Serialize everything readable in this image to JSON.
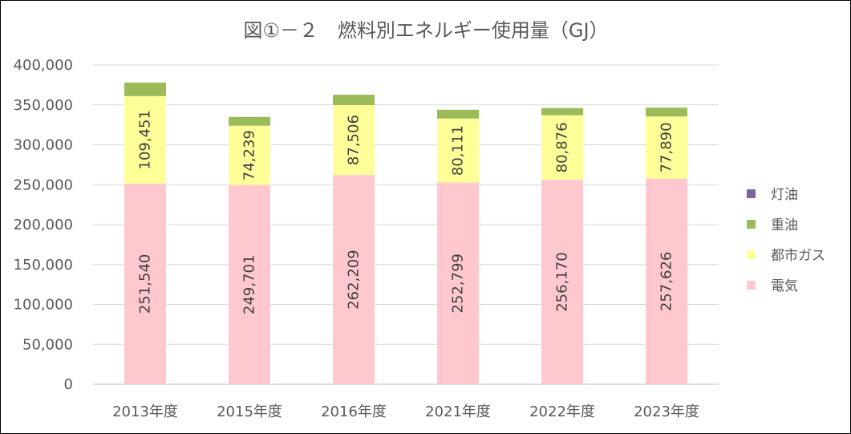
{
  "chart_data": {
    "type": "bar",
    "stacked": true,
    "title": "図①－２　燃料別エネルギー使用量（GJ）",
    "categories": [
      "2013年度",
      "2015年度",
      "2016年度",
      "2021年度",
      "2022年度",
      "2023年度"
    ],
    "ylim": [
      0,
      400000
    ],
    "yticks": [
      0,
      50000,
      100000,
      150000,
      200000,
      250000,
      300000,
      350000,
      400000
    ],
    "ytick_labels": [
      "0",
      "50,000",
      "100,000",
      "150,000",
      "200,000",
      "250,000",
      "300,000",
      "350,000",
      "400,000"
    ],
    "grid": true,
    "legend_position": "right",
    "series": [
      {
        "name": "電気",
        "color": "#ffc7ce",
        "values": [
          251540,
          249701,
          262209,
          252799,
          256170,
          257626
        ],
        "labels": [
          "251,540",
          "249,701",
          "262,209",
          "252,799",
          "256,170",
          "257,626"
        ]
      },
      {
        "name": "都市ガス",
        "color": "#ffff99",
        "values": [
          109451,
          74239,
          87506,
          80111,
          80876,
          77890
        ],
        "labels": [
          "109,451",
          "74,239",
          "87,506",
          "80,111",
          "80,876",
          "77,890"
        ]
      },
      {
        "name": "重油",
        "color": "#9bbb59",
        "values": [
          17000,
          11000,
          13000,
          11000,
          9000,
          11000
        ],
        "labels": []
      },
      {
        "name": "灯油",
        "color": "#8064a2",
        "values": [
          0,
          0,
          0,
          0,
          0,
          0
        ],
        "labels": []
      }
    ],
    "legend_order": [
      "灯油",
      "重油",
      "都市ガス",
      "電気"
    ]
  }
}
